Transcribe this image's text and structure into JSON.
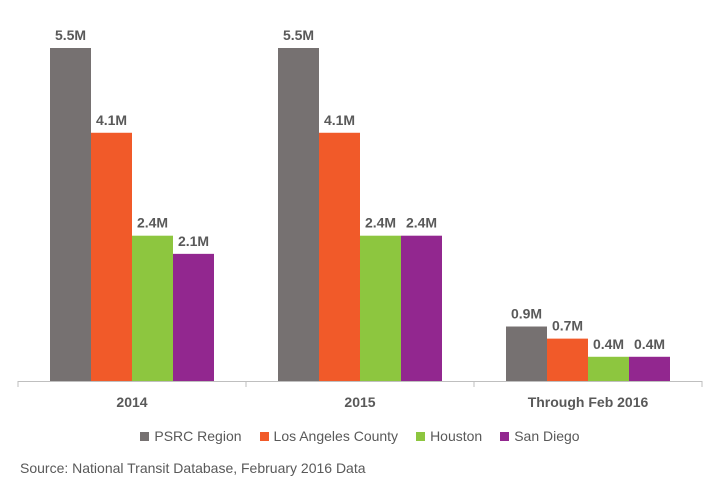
{
  "chart_data": {
    "type": "bar",
    "categories": [
      "2014",
      "2015",
      "Through Feb 2016"
    ],
    "series": [
      {
        "name": "PSRC Region",
        "color": "#767171",
        "values": [
          5.5,
          5.5,
          0.9
        ],
        "labels": [
          "5.5M",
          "5.5M",
          "0.9M"
        ]
      },
      {
        "name": "Los Angeles County",
        "color": "#F15A29",
        "values": [
          4.1,
          4.1,
          0.7
        ],
        "labels": [
          "4.1M",
          "4.1M",
          "0.7M"
        ]
      },
      {
        "name": "Houston",
        "color": "#8DC63F",
        "values": [
          2.4,
          2.4,
          0.4
        ],
        "labels": [
          "2.4M",
          "2.4M",
          "0.4M"
        ]
      },
      {
        "name": "San Diego",
        "color": "#92278F",
        "values": [
          2.1,
          2.4,
          0.4
        ],
        "labels": [
          "2.1M",
          "2.4M",
          "0.4M"
        ]
      }
    ],
    "ylim": [
      0,
      5.5
    ],
    "grid": false,
    "legend_position": "bottom"
  },
  "source": "Source: National Transit Database, February 2016 Data"
}
